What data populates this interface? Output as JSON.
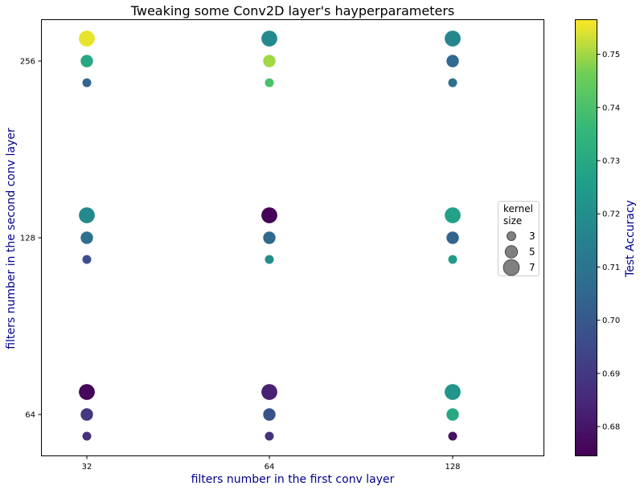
{
  "chart_data": {
    "type": "scatter",
    "title": "Tweaking some Conv2D layer's hayperparameters",
    "xlabel": "filters number in the first conv layer",
    "ylabel": "filters number in the second conv layer",
    "x_categories": [
      "32",
      "64",
      "128"
    ],
    "y_categories": [
      "64",
      "128",
      "256"
    ],
    "size_legend": {
      "title": [
        "kernel",
        "size"
      ],
      "values": [
        3,
        5,
        7
      ]
    },
    "colorbar": {
      "label": "Test Accuracy",
      "colormap": "viridis",
      "range": [
        0.6745,
        0.7565
      ],
      "ticks": [
        0.68,
        0.69,
        0.7,
        0.71,
        0.72,
        0.73,
        0.74,
        0.75
      ],
      "tick_labels": [
        "0.68",
        "0.69",
        "0.70",
        "0.71",
        "0.72",
        "0.73",
        "0.74",
        "0.75"
      ]
    },
    "points": [
      {
        "x": "32",
        "y": "64",
        "kernel": 3,
        "accuracy": 0.688
      },
      {
        "x": "32",
        "y": "64",
        "kernel": 5,
        "accuracy": 0.69
      },
      {
        "x": "32",
        "y": "64",
        "kernel": 7,
        "accuracy": 0.676
      },
      {
        "x": "32",
        "y": "128",
        "kernel": 3,
        "accuracy": 0.697
      },
      {
        "x": "32",
        "y": "128",
        "kernel": 5,
        "accuracy": 0.708
      },
      {
        "x": "32",
        "y": "128",
        "kernel": 7,
        "accuracy": 0.718
      },
      {
        "x": "32",
        "y": "256",
        "kernel": 3,
        "accuracy": 0.705
      },
      {
        "x": "32",
        "y": "256",
        "kernel": 5,
        "accuracy": 0.73
      },
      {
        "x": "32",
        "y": "256",
        "kernel": 7,
        "accuracy": 0.755
      },
      {
        "x": "64",
        "y": "64",
        "kernel": 3,
        "accuracy": 0.688
      },
      {
        "x": "64",
        "y": "64",
        "kernel": 5,
        "accuracy": 0.698
      },
      {
        "x": "64",
        "y": "64",
        "kernel": 7,
        "accuracy": 0.683
      },
      {
        "x": "64",
        "y": "128",
        "kernel": 3,
        "accuracy": 0.72
      },
      {
        "x": "64",
        "y": "128",
        "kernel": 5,
        "accuracy": 0.706
      },
      {
        "x": "64",
        "y": "128",
        "kernel": 7,
        "accuracy": 0.675
      },
      {
        "x": "64",
        "y": "256",
        "kernel": 3,
        "accuracy": 0.74
      },
      {
        "x": "64",
        "y": "256",
        "kernel": 5,
        "accuracy": 0.75
      },
      {
        "x": "64",
        "y": "256",
        "kernel": 7,
        "accuracy": 0.718
      },
      {
        "x": "128",
        "y": "64",
        "kernel": 3,
        "accuracy": 0.679
      },
      {
        "x": "128",
        "y": "64",
        "kernel": 5,
        "accuracy": 0.73
      },
      {
        "x": "128",
        "y": "64",
        "kernel": 7,
        "accuracy": 0.722
      },
      {
        "x": "128",
        "y": "128",
        "kernel": 3,
        "accuracy": 0.725
      },
      {
        "x": "128",
        "y": "128",
        "kernel": 5,
        "accuracy": 0.704
      },
      {
        "x": "128",
        "y": "128",
        "kernel": 7,
        "accuracy": 0.727
      },
      {
        "x": "128",
        "y": "256",
        "kernel": 3,
        "accuracy": 0.708
      },
      {
        "x": "128",
        "y": "256",
        "kernel": 5,
        "accuracy": 0.706
      },
      {
        "x": "128",
        "y": "256",
        "kernel": 7,
        "accuracy": 0.717
      }
    ]
  }
}
